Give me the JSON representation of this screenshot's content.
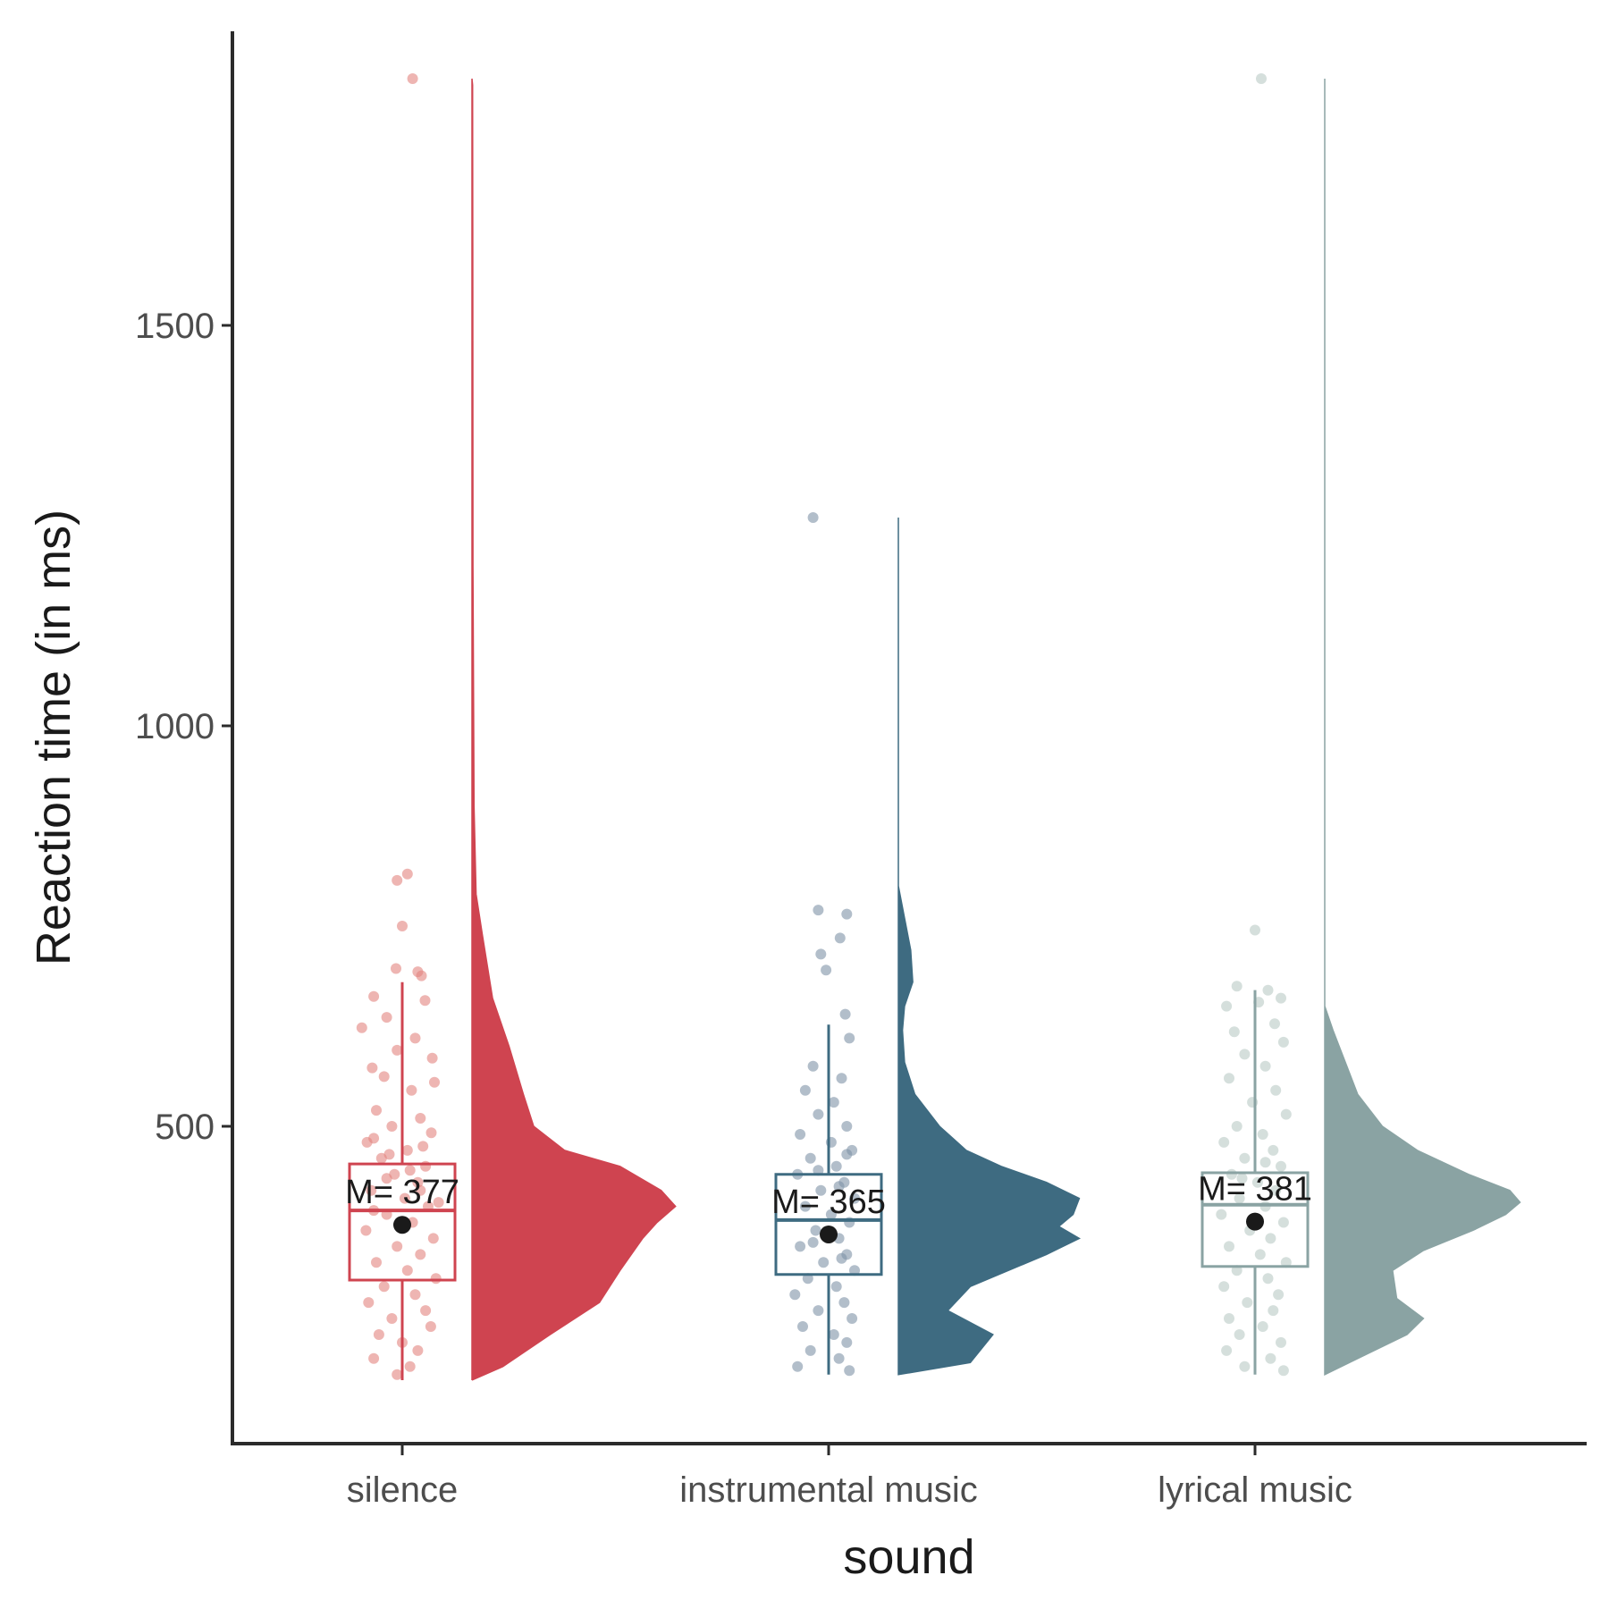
{
  "chart_data": {
    "type": "raincloud",
    "xlabel": "sound",
    "ylabel": "Reaction time (in ms)",
    "ylim": [
      170,
      1850
    ],
    "yticks": [
      500,
      1000,
      1500
    ],
    "grid": false,
    "legend": "none",
    "groups": [
      {
        "name": "silence",
        "color": "#cf4450",
        "point_color": "#e3847e",
        "box": {
          "min": 183,
          "q1": 308,
          "median": 395,
          "q3": 453,
          "max": 680
        },
        "mean": 377,
        "mean_label": "M= 377",
        "density": [
          [
            183,
            0.0
          ],
          [
            200,
            0.15
          ],
          [
            240,
            0.38
          ],
          [
            280,
            0.62
          ],
          [
            320,
            0.72
          ],
          [
            360,
            0.83
          ],
          [
            380,
            0.9
          ],
          [
            400,
            0.99
          ],
          [
            420,
            0.92
          ],
          [
            450,
            0.72
          ],
          [
            470,
            0.45
          ],
          [
            500,
            0.3
          ],
          [
            540,
            0.25
          ],
          [
            600,
            0.18
          ],
          [
            660,
            0.1
          ],
          [
            740,
            0.05
          ],
          [
            790,
            0.02
          ],
          [
            900,
            0.01
          ],
          [
            1200,
            0.005
          ],
          [
            1600,
            0.004
          ],
          [
            1800,
            0.003
          ],
          [
            1808,
            0.0
          ]
        ],
        "points": [
          [
            1808,
            0.2
          ],
          [
            815,
            0.1
          ],
          [
            807,
            -0.1
          ],
          [
            750,
            0.0
          ],
          [
            697,
            -0.12
          ],
          [
            693,
            0.3
          ],
          [
            688,
            0.37
          ],
          [
            662,
            -0.55
          ],
          [
            657,
            0.44
          ],
          [
            636,
            -0.3
          ],
          [
            623,
            -0.78
          ],
          [
            610,
            0.25
          ],
          [
            595,
            -0.1
          ],
          [
            585,
            0.58
          ],
          [
            573,
            -0.58
          ],
          [
            562,
            -0.35
          ],
          [
            555,
            0.62
          ],
          [
            545,
            0.18
          ],
          [
            520,
            -0.5
          ],
          [
            510,
            0.35
          ],
          [
            500,
            -0.2
          ],
          [
            492,
            0.56
          ],
          [
            480,
            -0.68
          ],
          [
            470,
            0.1
          ],
          [
            460,
            -0.4
          ],
          [
            450,
            0.45
          ],
          [
            440,
            -0.15
          ],
          [
            430,
            0.3
          ],
          [
            420,
            -0.6
          ],
          [
            410,
            0.05
          ],
          [
            400,
            0.5
          ],
          [
            390,
            -0.3
          ],
          [
            380,
            0.2
          ],
          [
            370,
            -0.7
          ],
          [
            360,
            0.6
          ],
          [
            350,
            -0.1
          ],
          [
            340,
            0.35
          ],
          [
            330,
            -0.5
          ],
          [
            320,
            0.1
          ],
          [
            310,
            0.65
          ],
          [
            300,
            -0.35
          ],
          [
            290,
            0.25
          ],
          [
            280,
            -0.65
          ],
          [
            270,
            0.45
          ],
          [
            260,
            -0.2
          ],
          [
            250,
            0.55
          ],
          [
            240,
            -0.45
          ],
          [
            230,
            0.0
          ],
          [
            220,
            0.3
          ],
          [
            210,
            -0.55
          ],
          [
            200,
            0.15
          ],
          [
            190,
            -0.1
          ],
          [
            395,
            -0.55
          ],
          [
            405,
            0.7
          ],
          [
            420,
            0.35
          ],
          [
            435,
            -0.3
          ],
          [
            445,
            0.15
          ],
          [
            465,
            -0.25
          ],
          [
            475,
            0.4
          ],
          [
            485,
            -0.55
          ]
        ]
      },
      {
        "name": "instrumental music",
        "color": "#3e6b81",
        "point_color": "#7e92a6",
        "box": {
          "min": 190,
          "q1": 315,
          "median": 383,
          "q3": 440,
          "max": 627
        },
        "mean": 365,
        "mean_label": "M= 365",
        "density": [
          [
            190,
            0.0
          ],
          [
            205,
            0.35
          ],
          [
            240,
            0.46
          ],
          [
            270,
            0.24
          ],
          [
            300,
            0.35
          ],
          [
            340,
            0.72
          ],
          [
            360,
            0.88
          ],
          [
            375,
            0.78
          ],
          [
            390,
            0.85
          ],
          [
            410,
            0.88
          ],
          [
            430,
            0.72
          ],
          [
            450,
            0.5
          ],
          [
            470,
            0.33
          ],
          [
            500,
            0.2
          ],
          [
            540,
            0.08
          ],
          [
            580,
            0.03
          ],
          [
            620,
            0.02
          ],
          [
            650,
            0.03
          ],
          [
            680,
            0.07
          ],
          [
            720,
            0.06
          ],
          [
            760,
            0.03
          ],
          [
            800,
            0.0
          ],
          [
            1000,
            0.0
          ],
          [
            1230,
            0.0
          ],
          [
            1260,
            0.0
          ]
        ],
        "points": [
          [
            1260,
            -0.3
          ],
          [
            770,
            -0.2
          ],
          [
            765,
            0.35
          ],
          [
            735,
            0.22
          ],
          [
            715,
            -0.15
          ],
          [
            695,
            -0.05
          ],
          [
            640,
            0.32
          ],
          [
            610,
            0.4
          ],
          [
            575,
            -0.3
          ],
          [
            560,
            0.25
          ],
          [
            545,
            -0.45
          ],
          [
            530,
            0.1
          ],
          [
            515,
            -0.2
          ],
          [
            500,
            0.35
          ],
          [
            490,
            -0.55
          ],
          [
            480,
            0.05
          ],
          [
            470,
            0.45
          ],
          [
            460,
            -0.35
          ],
          [
            450,
            0.15
          ],
          [
            440,
            -0.6
          ],
          [
            430,
            0.3
          ],
          [
            420,
            -0.15
          ],
          [
            410,
            0.5
          ],
          [
            400,
            -0.45
          ],
          [
            390,
            0.05
          ],
          [
            380,
            0.4
          ],
          [
            370,
            -0.25
          ],
          [
            360,
            0.2
          ],
          [
            350,
            -0.55
          ],
          [
            340,
            0.35
          ],
          [
            330,
            -0.1
          ],
          [
            320,
            0.5
          ],
          [
            310,
            -0.4
          ],
          [
            300,
            0.15
          ],
          [
            290,
            -0.65
          ],
          [
            280,
            0.3
          ],
          [
            270,
            -0.2
          ],
          [
            260,
            0.45
          ],
          [
            250,
            -0.5
          ],
          [
            240,
            0.1
          ],
          [
            230,
            0.35
          ],
          [
            220,
            -0.35
          ],
          [
            210,
            0.2
          ],
          [
            200,
            -0.6
          ],
          [
            195,
            0.4
          ],
          [
            425,
            0.2
          ],
          [
            445,
            -0.2
          ],
          [
            465,
            0.35
          ],
          [
            355,
            -0.3
          ],
          [
            335,
            0.25
          ]
        ]
      },
      {
        "name": "lyrical music",
        "color": "#8aa3a3",
        "point_color": "#b9c9c5",
        "box": {
          "min": 190,
          "q1": 325,
          "median": 402,
          "q3": 442,
          "max": 670
        },
        "mean": 381,
        "mean_label": "M= 381",
        "density": [
          [
            190,
            0.0
          ],
          [
            205,
            0.12
          ],
          [
            240,
            0.4
          ],
          [
            260,
            0.48
          ],
          [
            285,
            0.35
          ],
          [
            320,
            0.33
          ],
          [
            345,
            0.48
          ],
          [
            370,
            0.72
          ],
          [
            390,
            0.88
          ],
          [
            405,
            0.95
          ],
          [
            420,
            0.9
          ],
          [
            440,
            0.7
          ],
          [
            470,
            0.45
          ],
          [
            500,
            0.28
          ],
          [
            540,
            0.16
          ],
          [
            580,
            0.1
          ],
          [
            620,
            0.04
          ],
          [
            650,
            0.0
          ],
          [
            700,
            0.0
          ],
          [
            780,
            0.0
          ],
          [
            1000,
            0.0
          ],
          [
            1808,
            0.0
          ]
        ],
        "points": [
          [
            1808,
            0.12
          ],
          [
            745,
            0.0
          ],
          [
            675,
            -0.35
          ],
          [
            670,
            0.25
          ],
          [
            660,
            0.5
          ],
          [
            655,
            0.07
          ],
          [
            650,
            -0.55
          ],
          [
            628,
            0.38
          ],
          [
            618,
            -0.4
          ],
          [
            605,
            0.55
          ],
          [
            590,
            -0.2
          ],
          [
            575,
            0.2
          ],
          [
            560,
            -0.5
          ],
          [
            545,
            0.4
          ],
          [
            530,
            -0.05
          ],
          [
            515,
            0.6
          ],
          [
            500,
            -0.35
          ],
          [
            490,
            0.15
          ],
          [
            480,
            -0.6
          ],
          [
            470,
            0.35
          ],
          [
            460,
            -0.2
          ],
          [
            450,
            0.5
          ],
          [
            440,
            -0.45
          ],
          [
            430,
            0.05
          ],
          [
            420,
            0.4
          ],
          [
            410,
            -0.3
          ],
          [
            400,
            0.2
          ],
          [
            390,
            -0.65
          ],
          [
            380,
            0.55
          ],
          [
            370,
            -0.1
          ],
          [
            360,
            0.3
          ],
          [
            350,
            -0.5
          ],
          [
            340,
            0.1
          ],
          [
            330,
            0.6
          ],
          [
            320,
            -0.35
          ],
          [
            310,
            0.25
          ],
          [
            300,
            -0.6
          ],
          [
            290,
            0.45
          ],
          [
            280,
            -0.15
          ],
          [
            270,
            0.35
          ],
          [
            260,
            -0.5
          ],
          [
            250,
            0.15
          ],
          [
            240,
            -0.3
          ],
          [
            230,
            0.5
          ],
          [
            220,
            -0.55
          ],
          [
            210,
            0.3
          ],
          [
            200,
            -0.2
          ],
          [
            195,
            0.55
          ],
          [
            455,
            0.2
          ],
          [
            435,
            -0.25
          ]
        ]
      }
    ]
  }
}
